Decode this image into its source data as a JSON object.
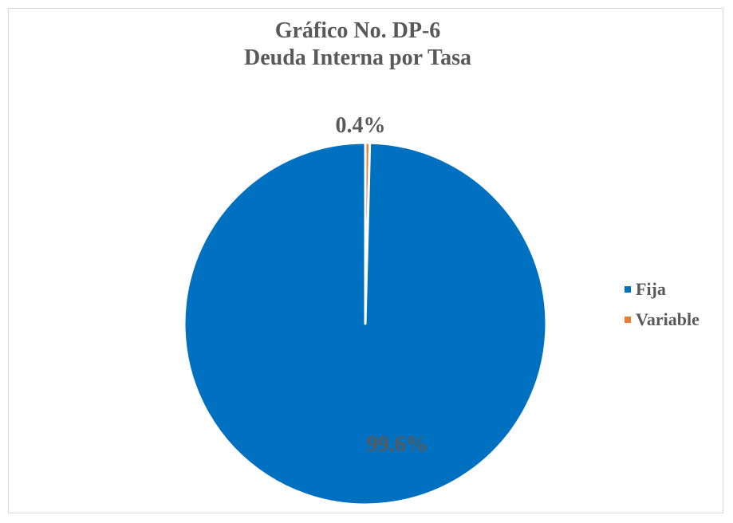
{
  "chart_data": {
    "type": "pie",
    "title": "Gráfico No. DP-6",
    "subtitle": "Deuda Interna por Tasa",
    "categories": [
      "Fija",
      "Variable"
    ],
    "values": [
      99.6,
      0.4
    ],
    "labels": [
      "99.6%",
      "0.4%"
    ],
    "colors": [
      "#0070c0",
      "#ed7d31"
    ],
    "legend_position": "right"
  }
}
